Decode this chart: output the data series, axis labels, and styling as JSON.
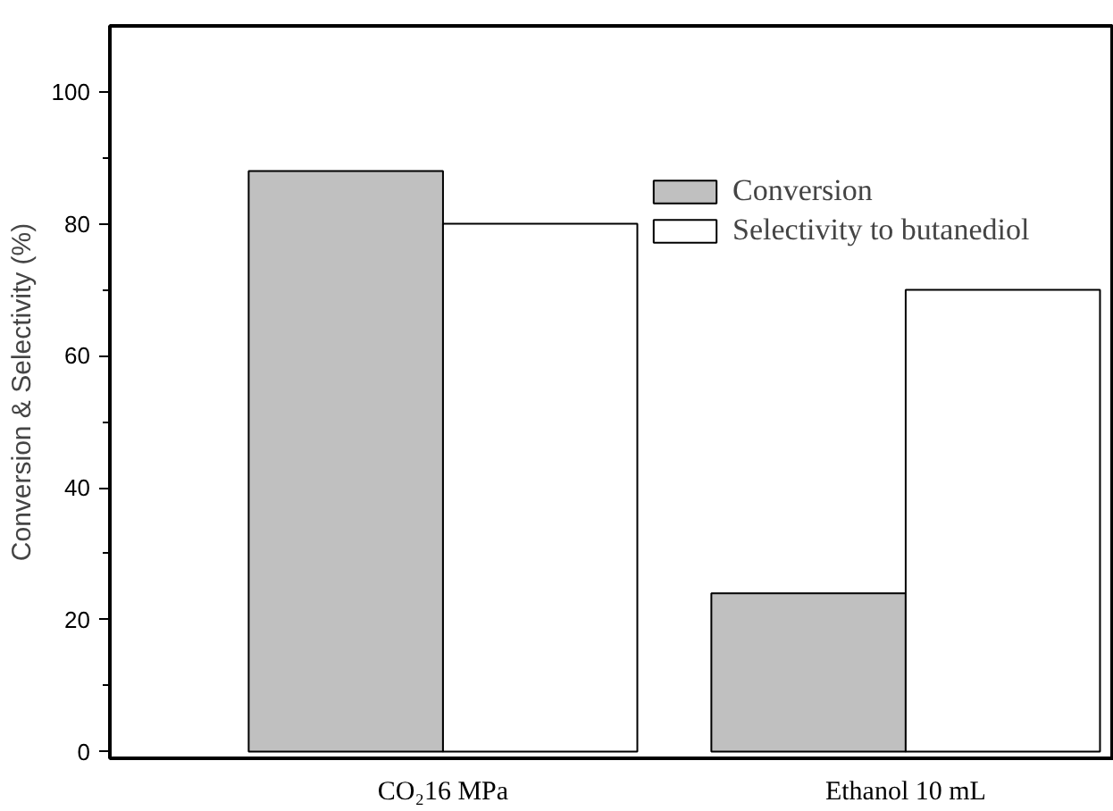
{
  "chart_data": {
    "type": "bar",
    "categories": [
      "CO₂16 MPa",
      "Ethanol 10 mL"
    ],
    "ylabel": "Conversion & Selectivity (%)",
    "series": [
      {
        "name": "Conversion",
        "color": "#c0c0c0",
        "values": [
          88,
          24
        ]
      },
      {
        "name": "Selectivity to butanediol",
        "color": "#ffffff",
        "values": [
          80,
          70
        ]
      }
    ],
    "ylim": [
      -1,
      110
    ],
    "yticks": [
      0,
      20,
      40,
      60,
      80,
      100
    ],
    "grid": false,
    "legend": "top right"
  }
}
